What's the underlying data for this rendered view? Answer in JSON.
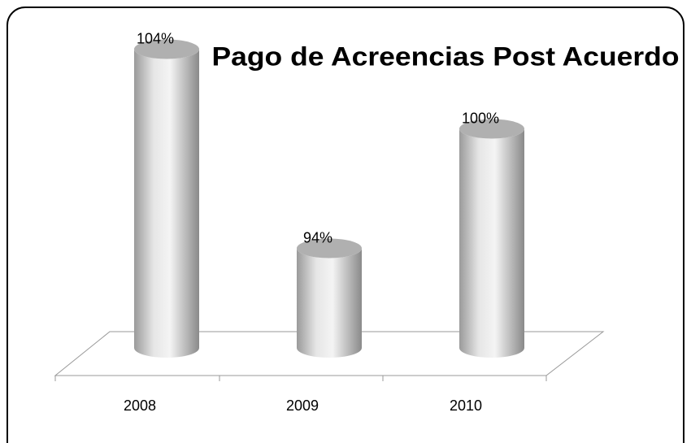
{
  "chart_data": {
    "type": "bar3d",
    "title": "Pago de Acreencias Post Acuerdo",
    "categories": [
      "2008",
      "2009",
      "2010"
    ],
    "values": [
      104,
      94,
      100
    ],
    "value_labels": [
      "104%",
      "94%",
      "100%"
    ],
    "color": "#c8c8c8",
    "ylim": [
      89,
      105
    ]
  }
}
